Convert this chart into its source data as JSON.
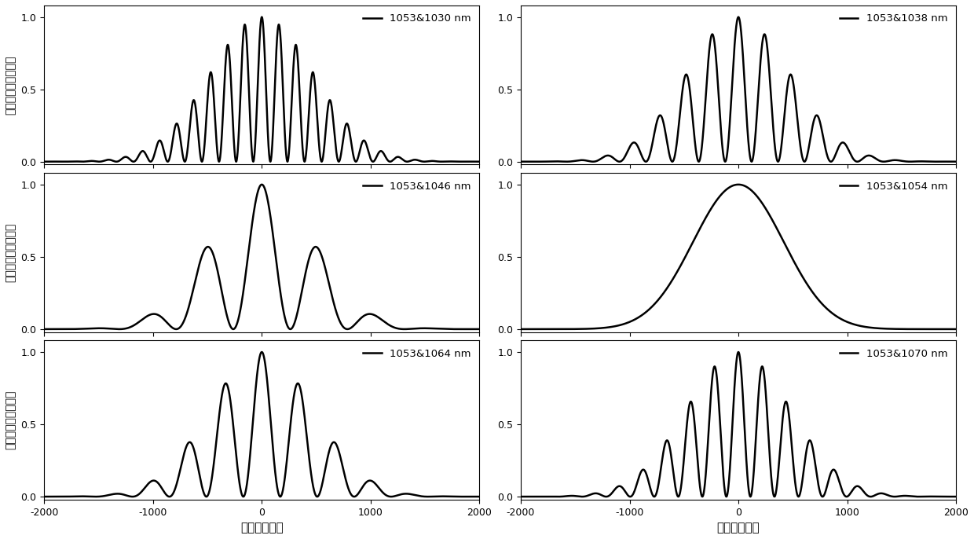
{
  "subplots": [
    {
      "label": "1053&1030 nm",
      "lam1": 1053,
      "lam2": 1030,
      "sigma_fs": 480
    },
    {
      "label": "1053&1038 nm",
      "lam1": 1053,
      "lam2": 1038,
      "sigma_fs": 480
    },
    {
      "label": "1053&1046 nm",
      "lam1": 1053,
      "lam2": 1046,
      "sigma_fs": 480
    },
    {
      "label": "1053&1054 nm",
      "lam1": 1053,
      "lam2": 1054,
      "sigma_fs": 480
    },
    {
      "label": "1053&1064 nm",
      "lam1": 1053,
      "lam2": 1064,
      "sigma_fs": 480
    },
    {
      "label": "1053&1070 nm",
      "lam1": 1053,
      "lam2": 1070,
      "sigma_fs": 480
    }
  ],
  "xlim": [
    -2000,
    2000
  ],
  "ylim": [
    -0.02,
    1.08
  ],
  "yticks": [
    0,
    0.5,
    1
  ],
  "xticks": [
    -2000,
    -1000,
    0,
    1000,
    2000
  ],
  "xlabel": "时间（飞秒）",
  "ylabel_left": "光强（归一化单位）",
  "line_color": "#000000",
  "line_width": 1.8,
  "background_color": "white",
  "c_nm_per_fs": 300.0,
  "envelope_sigma": 480
}
